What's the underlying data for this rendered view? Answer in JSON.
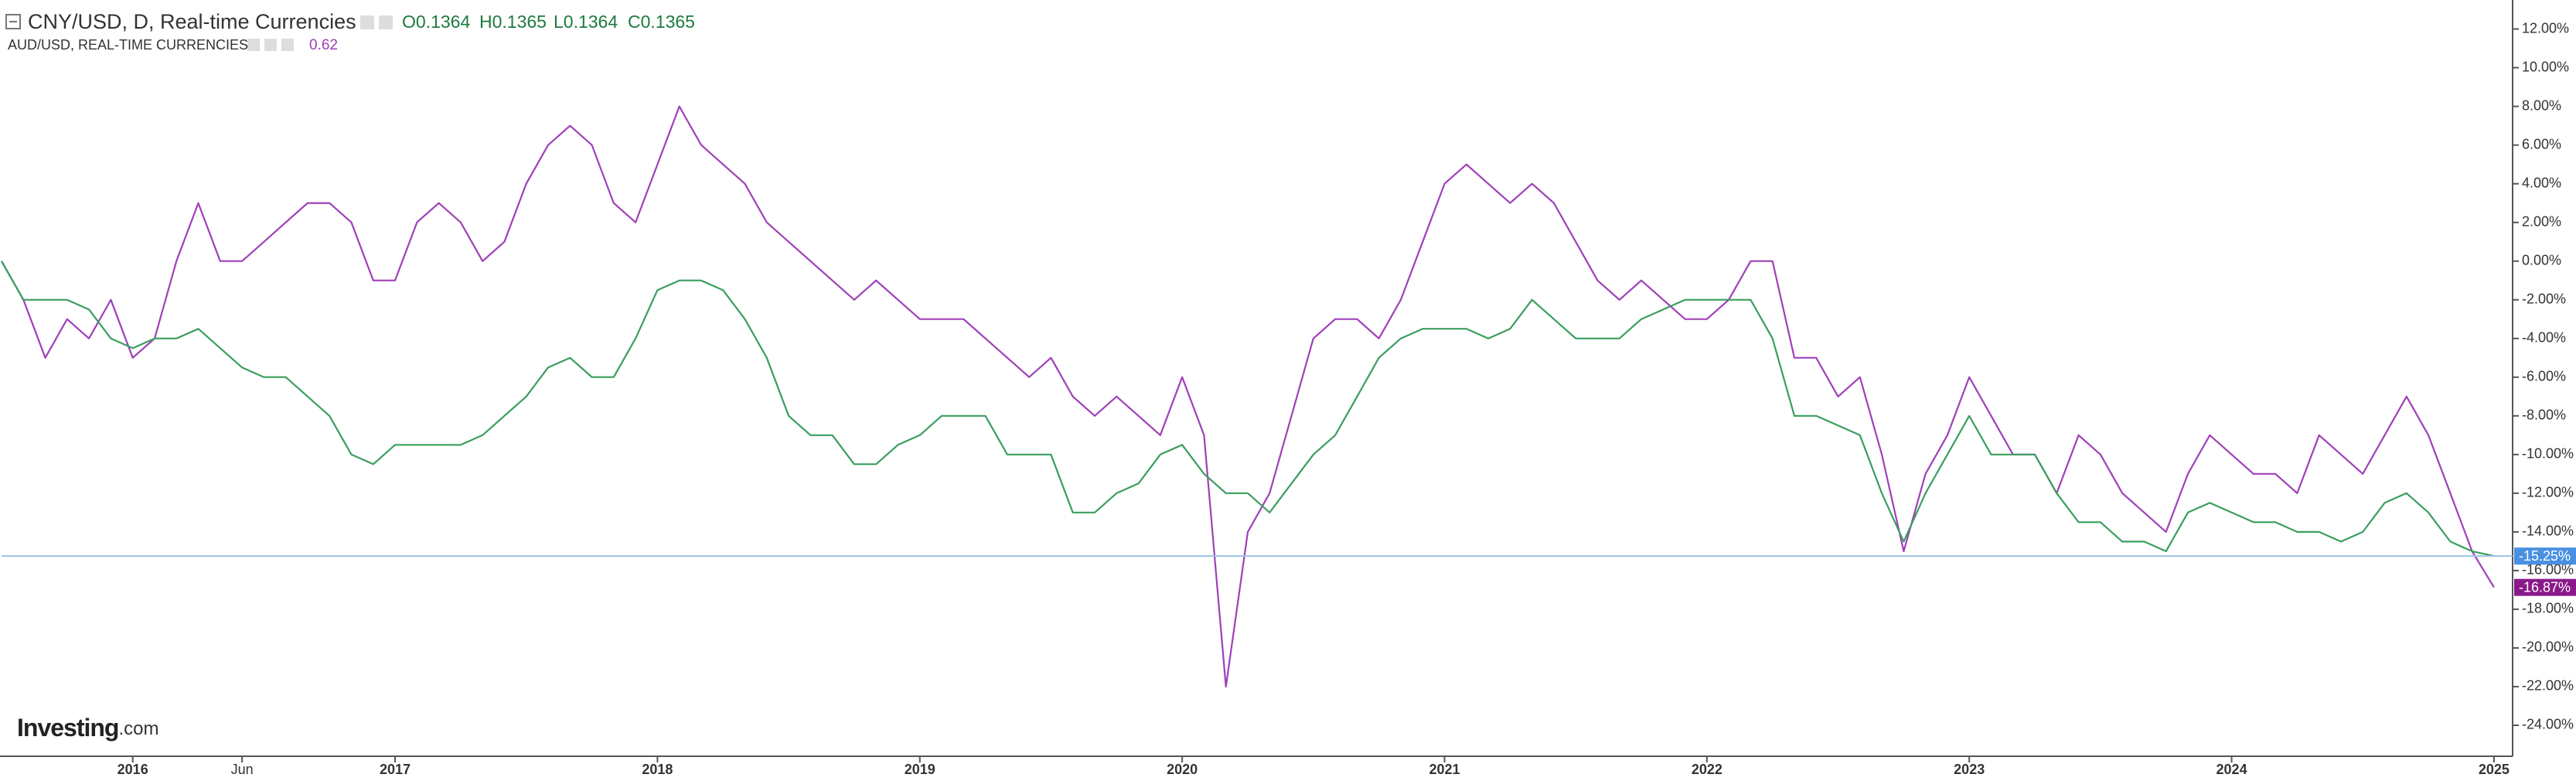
{
  "chart_data": {
    "type": "line",
    "title": "CNY/USD, D, Real-time Currencies",
    "brand": [
      "Investing",
      ".com"
    ],
    "categories": [
      null,
      null,
      null,
      null,
      null,
      null,
      "2016",
      null,
      null,
      null,
      null,
      "Jun",
      null,
      null,
      null,
      null,
      null,
      null,
      "2017",
      null,
      null,
      null,
      null,
      null,
      null,
      null,
      null,
      null,
      null,
      null,
      "2018",
      null,
      null,
      null,
      null,
      null,
      null,
      null,
      null,
      null,
      null,
      null,
      "2019",
      null,
      null,
      null,
      null,
      null,
      null,
      null,
      null,
      null,
      null,
      null,
      "2020",
      null,
      null,
      null,
      null,
      null,
      null,
      null,
      null,
      null,
      null,
      null,
      "2021",
      null,
      null,
      null,
      null,
      null,
      null,
      null,
      null,
      null,
      null,
      null,
      "2022",
      null,
      null,
      null,
      null,
      null,
      null,
      null,
      null,
      null,
      null,
      null,
      "2023",
      null,
      null,
      null,
      null,
      null,
      null,
      null,
      null,
      null,
      null,
      null,
      "2024",
      null,
      null,
      null,
      null,
      null,
      null,
      null,
      null,
      null,
      null,
      null,
      "2025"
    ],
    "series": [
      {
        "name": "CNY/USD, D, Real-time Currencies",
        "quote": [
          "O0.1364",
          "H0.1365",
          "L0.1364",
          "C0.1365"
        ],
        "color": "#3a9e5f",
        "badge_color": "#4a90e2",
        "last_label": "-15.25%",
        "price_line": true,
        "values": [
          0,
          -2,
          -2,
          -2,
          -2.5,
          -4,
          -4.5,
          -4,
          -4,
          -3.5,
          -4.5,
          -5.5,
          -6,
          -6,
          -7,
          -8,
          -10,
          -10.5,
          -9.5,
          -9.5,
          -9.5,
          -9.5,
          -9,
          -8,
          -7,
          -5.5,
          -5,
          -6,
          -6,
          -4,
          -1.5,
          -1,
          -1,
          -1.5,
          -3,
          -5,
          -8,
          -9,
          -9,
          -10.5,
          -10.5,
          -9.5,
          -9,
          -8,
          -8,
          -8,
          -10,
          -10,
          -10,
          -13,
          -13,
          -12,
          -11.5,
          -10,
          -9.5,
          -11,
          -12,
          -12,
          -13,
          -11.5,
          -10,
          -9,
          -7,
          -5,
          -4,
          -3.5,
          -3.5,
          -3.5,
          -4,
          -3.5,
          -2,
          -3,
          -4,
          -4,
          -4,
          -3,
          -2.5,
          -2,
          -2,
          -2,
          -2,
          -4,
          -8,
          -8,
          -8.5,
          -9,
          -12,
          -14.5,
          -12,
          -10,
          -8,
          -10,
          -10,
          -10,
          -12,
          -13.5,
          -13.5,
          -14.5,
          -14.5,
          -15,
          -13,
          -12.5,
          -13,
          -13.5,
          -13.5,
          -14,
          -14,
          -14.5,
          -14,
          -12.5,
          -12,
          -13,
          -14.5,
          -15,
          -15.25
        ]
      },
      {
        "name": "AUD/USD, REAL-TIME CURRENCIES",
        "quote": [
          "0.62"
        ],
        "color": "#a040b8",
        "badge_color": "#8a1a8a",
        "last_label": "-16.87%",
        "price_line": false,
        "values": [
          0,
          -2,
          -5,
          -3,
          -4,
          -2,
          -5,
          -4,
          0,
          3,
          0,
          0,
          1,
          2,
          3,
          3,
          2,
          -1,
          -1,
          2,
          3,
          2,
          0,
          1,
          4,
          6,
          7,
          6,
          3,
          2,
          5,
          8,
          6,
          5,
          4,
          2,
          1,
          0,
          -1,
          -2,
          -1,
          -2,
          -3,
          -3,
          -3,
          -4,
          -5,
          -6,
          -5,
          -7,
          -8,
          -7,
          -8,
          -9,
          -6,
          -9,
          -22,
          -14,
          -12,
          -8,
          -4,
          -3,
          -3,
          -4,
          -2,
          1,
          4,
          5,
          4,
          3,
          4,
          3,
          1,
          -1,
          -2,
          -1,
          -2,
          -3,
          -3,
          -2,
          0,
          0,
          -5,
          -5,
          -7,
          -6,
          -10,
          -15,
          -11,
          -9,
          -6,
          -8,
          -10,
          -10,
          -12,
          -9,
          -10,
          -12,
          -13,
          -14,
          -11,
          -9,
          -10,
          -11,
          -11,
          -12,
          -9,
          -10,
          -11,
          -9,
          -7,
          -9,
          -12,
          -15,
          -16.87
        ]
      }
    ],
    "ylim": [
      -25.6,
      13.5
    ],
    "yticks": [
      {
        "value": 12,
        "label": "12.00%"
      },
      {
        "value": 10,
        "label": "10.00%"
      },
      {
        "value": 8,
        "label": "8.00%"
      },
      {
        "value": 6,
        "label": "6.00%"
      },
      {
        "value": 4,
        "label": "4.00%"
      },
      {
        "value": 2,
        "label": "2.00%"
      },
      {
        "value": 0,
        "label": "0.00%"
      },
      {
        "value": -2,
        "label": "-2.00%"
      },
      {
        "value": -4,
        "label": "-4.00%"
      },
      {
        "value": -6,
        "label": "-6.00%"
      },
      {
        "value": -8,
        "label": "-8.00%"
      },
      {
        "value": -10,
        "label": "-10.00%"
      },
      {
        "value": -12,
        "label": "-12.00%"
      },
      {
        "value": -14,
        "label": "-14.00%"
      },
      {
        "value": -16,
        "label": "-16.00%"
      },
      {
        "value": -18,
        "label": "-18.00%"
      },
      {
        "value": -20,
        "label": "-20.00%"
      },
      {
        "value": -22,
        "label": "-22.00%"
      },
      {
        "value": -24,
        "label": "-24.00%"
      }
    ],
    "grid": false
  }
}
